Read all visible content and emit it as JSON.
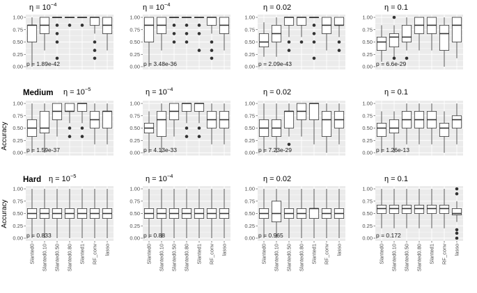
{
  "y_axis_label": "Accuracy",
  "row_labels": [
    "",
    "Medium",
    "Hard"
  ],
  "eta_prefix": "η = ",
  "chart_data": {
    "type": "boxplot",
    "categories": [
      "Slanted0",
      "Slanted0.10",
      "Slanted0.50",
      "Slanted0.80",
      "Slanted1",
      "RF_conv",
      "lasso"
    ],
    "yticks": [
      "0.00",
      "0.25",
      "0.50",
      "0.75",
      "1.00"
    ],
    "ylim": [
      0,
      1
    ],
    "panels": [
      {
        "row": 0,
        "col": 0,
        "eta_base": "10",
        "eta_exp": "−4",
        "pvalue": "p = 1.89e-42",
        "boxes": [
          {
            "q1": 0.5,
            "med": 0.84,
            "q3": 0.84,
            "lo": 0.0,
            "hi": 1.0,
            "out": []
          },
          {
            "q1": 0.67,
            "med": 0.84,
            "q3": 1.0,
            "lo": 0.33,
            "hi": 1.0,
            "out": []
          },
          {
            "q1": 1.0,
            "med": 1.0,
            "q3": 1.0,
            "lo": 1.0,
            "hi": 1.0,
            "out": [
              0.84,
              0.67,
              0.5,
              0.17
            ]
          },
          {
            "q1": 1.0,
            "med": 1.0,
            "q3": 1.0,
            "lo": 1.0,
            "hi": 1.0,
            "out": [
              0.84
            ]
          },
          {
            "q1": 1.0,
            "med": 1.0,
            "q3": 1.0,
            "lo": 1.0,
            "hi": 1.0,
            "out": [
              0.84
            ]
          },
          {
            "q1": 0.84,
            "med": 1.0,
            "q3": 1.0,
            "lo": 0.67,
            "hi": 1.0,
            "out": [
              0.5,
              0.33,
              0.17
            ]
          },
          {
            "q1": 0.67,
            "med": 0.84,
            "q3": 1.0,
            "lo": 0.33,
            "hi": 1.0,
            "out": []
          }
        ]
      },
      {
        "row": 0,
        "col": 1,
        "eta_base": "10",
        "eta_exp": "−4",
        "pvalue": "p = 3.48e-36",
        "boxes": [
          {
            "q1": 0.5,
            "med": 0.84,
            "q3": 1.0,
            "lo": 0.0,
            "hi": 1.0,
            "out": []
          },
          {
            "q1": 0.67,
            "med": 0.84,
            "q3": 1.0,
            "lo": 0.33,
            "hi": 1.0,
            "out": []
          },
          {
            "q1": 1.0,
            "med": 1.0,
            "q3": 1.0,
            "lo": 1.0,
            "hi": 1.0,
            "out": [
              0.84,
              0.67,
              0.5
            ]
          },
          {
            "q1": 1.0,
            "med": 1.0,
            "q3": 1.0,
            "lo": 1.0,
            "hi": 1.0,
            "out": [
              0.84,
              0.67,
              0.5
            ]
          },
          {
            "q1": 1.0,
            "med": 1.0,
            "q3": 1.0,
            "lo": 1.0,
            "hi": 1.0,
            "out": [
              0.84,
              0.67,
              0.33
            ]
          },
          {
            "q1": 0.84,
            "med": 1.0,
            "q3": 1.0,
            "lo": 0.67,
            "hi": 1.0,
            "out": [
              0.5,
              0.33,
              0.17
            ]
          },
          {
            "q1": 0.67,
            "med": 0.84,
            "q3": 1.0,
            "lo": 0.33,
            "hi": 1.0,
            "out": []
          }
        ]
      },
      {
        "row": 0,
        "col": 2,
        "eta_base": "0.02",
        "eta_exp": "",
        "pvalue": "p = 2.09e-43",
        "boxes": [
          {
            "q1": 0.4,
            "med": 0.5,
            "q3": 0.67,
            "lo": 0.2,
            "hi": 0.9,
            "out": []
          },
          {
            "q1": 0.5,
            "med": 0.67,
            "q3": 0.84,
            "lo": 0.2,
            "hi": 1.0,
            "out": []
          },
          {
            "q1": 0.84,
            "med": 1.0,
            "q3": 1.0,
            "lo": 0.6,
            "hi": 1.0,
            "out": [
              0.5,
              0.33
            ]
          },
          {
            "q1": 0.84,
            "med": 1.0,
            "q3": 1.0,
            "lo": 0.6,
            "hi": 1.0,
            "out": [
              0.5
            ]
          },
          {
            "q1": 1.0,
            "med": 1.0,
            "q3": 1.0,
            "lo": 1.0,
            "hi": 1.0,
            "out": [
              0.84,
              0.67,
              0.5,
              0.17
            ]
          },
          {
            "q1": 0.67,
            "med": 0.84,
            "q3": 1.0,
            "lo": 0.33,
            "hi": 1.0,
            "out": []
          },
          {
            "q1": 0.84,
            "med": 0.84,
            "q3": 1.0,
            "lo": 0.6,
            "hi": 1.0,
            "out": [
              0.5,
              0.33
            ]
          }
        ]
      },
      {
        "row": 0,
        "col": 3,
        "eta_base": "0.1",
        "eta_exp": "",
        "pvalue": "p = 6.6e-29",
        "boxes": [
          {
            "q1": 0.33,
            "med": 0.5,
            "q3": 0.6,
            "lo": 0.1,
            "hi": 0.84,
            "out": []
          },
          {
            "q1": 0.4,
            "med": 0.6,
            "q3": 0.67,
            "lo": 0.17,
            "hi": 0.84,
            "out": [
              1.0,
              0.17
            ]
          },
          {
            "q1": 0.5,
            "med": 0.6,
            "q3": 0.84,
            "lo": 0.33,
            "hi": 1.0,
            "out": [
              0.17
            ]
          },
          {
            "q1": 0.67,
            "med": 0.84,
            "q3": 1.0,
            "lo": 0.33,
            "hi": 1.0,
            "out": []
          },
          {
            "q1": 0.67,
            "med": 0.84,
            "q3": 1.0,
            "lo": 0.33,
            "hi": 1.0,
            "out": []
          },
          {
            "q1": 0.33,
            "med": 0.67,
            "q3": 0.84,
            "lo": 0.0,
            "hi": 1.0,
            "out": []
          },
          {
            "q1": 0.5,
            "med": 0.84,
            "q3": 1.0,
            "lo": 0.17,
            "hi": 1.0,
            "out": []
          }
        ]
      },
      {
        "row": 1,
        "col": 0,
        "eta_base": "10",
        "eta_exp": "−5",
        "pvalue": "p = 1.59e-37",
        "boxes": [
          {
            "q1": 0.33,
            "med": 0.5,
            "q3": 0.67,
            "lo": 0.0,
            "hi": 1.0,
            "out": []
          },
          {
            "q1": 0.4,
            "med": 0.5,
            "q3": 0.84,
            "lo": 0.0,
            "hi": 1.0,
            "out": []
          },
          {
            "q1": 0.67,
            "med": 0.84,
            "q3": 1.0,
            "lo": 0.33,
            "hi": 1.0,
            "out": []
          },
          {
            "q1": 0.84,
            "med": 0.84,
            "q3": 1.0,
            "lo": 0.6,
            "hi": 1.0,
            "out": [
              0.5,
              0.33
            ]
          },
          {
            "q1": 0.84,
            "med": 1.0,
            "q3": 1.0,
            "lo": 0.6,
            "hi": 1.0,
            "out": [
              0.5,
              0.33
            ]
          },
          {
            "q1": 0.5,
            "med": 0.67,
            "q3": 0.84,
            "lo": 0.17,
            "hi": 1.0,
            "out": []
          },
          {
            "q1": 0.5,
            "med": 0.84,
            "q3": 0.84,
            "lo": 0.17,
            "hi": 1.0,
            "out": []
          }
        ]
      },
      {
        "row": 1,
        "col": 1,
        "eta_base": "10",
        "eta_exp": "−4",
        "pvalue": "p = 4.13e-33",
        "boxes": [
          {
            "q1": 0.4,
            "med": 0.5,
            "q3": 0.6,
            "lo": 0.0,
            "hi": 0.84,
            "out": []
          },
          {
            "q1": 0.33,
            "med": 0.67,
            "q3": 0.84,
            "lo": 0.0,
            "hi": 1.0,
            "out": []
          },
          {
            "q1": 0.67,
            "med": 0.84,
            "q3": 1.0,
            "lo": 0.33,
            "hi": 1.0,
            "out": []
          },
          {
            "q1": 0.84,
            "med": 1.0,
            "q3": 1.0,
            "lo": 0.6,
            "hi": 1.0,
            "out": [
              0.5,
              0.33
            ]
          },
          {
            "q1": 0.84,
            "med": 1.0,
            "q3": 1.0,
            "lo": 0.6,
            "hi": 1.0,
            "out": [
              0.5,
              0.33
            ]
          },
          {
            "q1": 0.5,
            "med": 0.67,
            "q3": 0.84,
            "lo": 0.17,
            "hi": 1.0,
            "out": []
          },
          {
            "q1": 0.5,
            "med": 0.67,
            "q3": 0.84,
            "lo": 0.17,
            "hi": 1.0,
            "out": []
          }
        ]
      },
      {
        "row": 1,
        "col": 2,
        "eta_base": "0.02",
        "eta_exp": "",
        "pvalue": "p = 7.23e-29",
        "boxes": [
          {
            "q1": 0.33,
            "med": 0.5,
            "q3": 0.67,
            "lo": 0.0,
            "hi": 1.0,
            "out": []
          },
          {
            "q1": 0.33,
            "med": 0.5,
            "q3": 0.67,
            "lo": 0.0,
            "hi": 1.0,
            "out": []
          },
          {
            "q1": 0.5,
            "med": 0.84,
            "q3": 0.84,
            "lo": 0.33,
            "hi": 1.0,
            "out": [
              0.17
            ]
          },
          {
            "q1": 0.67,
            "med": 0.84,
            "q3": 1.0,
            "lo": 0.33,
            "hi": 1.0,
            "out": []
          },
          {
            "q1": 0.67,
            "med": 1.0,
            "q3": 1.0,
            "lo": 0.17,
            "hi": 1.0,
            "out": []
          },
          {
            "q1": 0.33,
            "med": 0.67,
            "q3": 0.84,
            "lo": 0.0,
            "hi": 1.0,
            "out": []
          },
          {
            "q1": 0.5,
            "med": 0.67,
            "q3": 0.84,
            "lo": 0.17,
            "hi": 1.0,
            "out": []
          }
        ]
      },
      {
        "row": 1,
        "col": 3,
        "eta_base": "0.1",
        "eta_exp": "",
        "pvalue": "p = 1.26e-13",
        "boxes": [
          {
            "q1": 0.33,
            "med": 0.5,
            "q3": 0.6,
            "lo": 0.0,
            "hi": 0.84,
            "out": []
          },
          {
            "q1": 0.4,
            "med": 0.5,
            "q3": 0.67,
            "lo": 0.0,
            "hi": 0.84,
            "out": []
          },
          {
            "q1": 0.5,
            "med": 0.67,
            "q3": 0.84,
            "lo": 0.17,
            "hi": 1.0,
            "out": []
          },
          {
            "q1": 0.5,
            "med": 0.67,
            "q3": 0.84,
            "lo": 0.17,
            "hi": 1.0,
            "out": []
          },
          {
            "q1": 0.5,
            "med": 0.67,
            "q3": 0.84,
            "lo": 0.17,
            "hi": 1.0,
            "out": []
          },
          {
            "q1": 0.33,
            "med": 0.5,
            "q3": 0.6,
            "lo": 0.0,
            "hi": 0.84,
            "out": []
          },
          {
            "q1": 0.5,
            "med": 0.67,
            "q3": 0.75,
            "lo": 0.17,
            "hi": 1.0,
            "out": []
          }
        ]
      },
      {
        "row": 2,
        "col": 0,
        "eta_base": "10",
        "eta_exp": "−5",
        "pvalue": "p = 0.833",
        "boxes": [
          {
            "q1": 0.4,
            "med": 0.5,
            "q3": 0.6,
            "lo": 0.0,
            "hi": 1.0,
            "out": []
          },
          {
            "q1": 0.4,
            "med": 0.5,
            "q3": 0.6,
            "lo": 0.0,
            "hi": 1.0,
            "out": []
          },
          {
            "q1": 0.4,
            "med": 0.5,
            "q3": 0.6,
            "lo": 0.0,
            "hi": 1.0,
            "out": []
          },
          {
            "q1": 0.4,
            "med": 0.5,
            "q3": 0.6,
            "lo": 0.0,
            "hi": 1.0,
            "out": []
          },
          {
            "q1": 0.4,
            "med": 0.5,
            "q3": 0.6,
            "lo": 0.0,
            "hi": 1.0,
            "out": []
          },
          {
            "q1": 0.4,
            "med": 0.5,
            "q3": 0.6,
            "lo": 0.0,
            "hi": 1.0,
            "out": []
          },
          {
            "q1": 0.4,
            "med": 0.5,
            "q3": 0.6,
            "lo": 0.0,
            "hi": 1.0,
            "out": []
          }
        ]
      },
      {
        "row": 2,
        "col": 1,
        "eta_base": "10",
        "eta_exp": "−4",
        "pvalue": "p = 0.88",
        "boxes": [
          {
            "q1": 0.4,
            "med": 0.5,
            "q3": 0.6,
            "lo": 0.0,
            "hi": 1.0,
            "out": []
          },
          {
            "q1": 0.4,
            "med": 0.5,
            "q3": 0.6,
            "lo": 0.0,
            "hi": 1.0,
            "out": []
          },
          {
            "q1": 0.4,
            "med": 0.5,
            "q3": 0.6,
            "lo": 0.0,
            "hi": 1.0,
            "out": []
          },
          {
            "q1": 0.4,
            "med": 0.5,
            "q3": 0.6,
            "lo": 0.0,
            "hi": 1.0,
            "out": []
          },
          {
            "q1": 0.4,
            "med": 0.5,
            "q3": 0.6,
            "lo": 0.0,
            "hi": 1.0,
            "out": []
          },
          {
            "q1": 0.4,
            "med": 0.5,
            "q3": 0.6,
            "lo": 0.0,
            "hi": 1.0,
            "out": []
          },
          {
            "q1": 0.4,
            "med": 0.5,
            "q3": 0.6,
            "lo": 0.0,
            "hi": 1.0,
            "out": []
          }
        ]
      },
      {
        "row": 2,
        "col": 2,
        "eta_base": "0.02",
        "eta_exp": "",
        "pvalue": "p = 0.965",
        "boxes": [
          {
            "q1": 0.4,
            "med": 0.5,
            "q3": 0.6,
            "lo": 0.0,
            "hi": 1.0,
            "out": []
          },
          {
            "q1": 0.33,
            "med": 0.5,
            "q3": 0.75,
            "lo": 0.0,
            "hi": 1.0,
            "out": []
          },
          {
            "q1": 0.4,
            "med": 0.5,
            "q3": 0.6,
            "lo": 0.0,
            "hi": 1.0,
            "out": []
          },
          {
            "q1": 0.4,
            "med": 0.5,
            "q3": 0.6,
            "lo": 0.0,
            "hi": 1.0,
            "out": []
          },
          {
            "q1": 0.4,
            "med": 0.6,
            "q3": 0.6,
            "lo": 0.0,
            "hi": 1.0,
            "out": []
          },
          {
            "q1": 0.4,
            "med": 0.5,
            "q3": 0.6,
            "lo": 0.0,
            "hi": 1.0,
            "out": []
          },
          {
            "q1": 0.4,
            "med": 0.5,
            "q3": 0.6,
            "lo": 0.0,
            "hi": 1.0,
            "out": []
          }
        ]
      },
      {
        "row": 2,
        "col": 3,
        "eta_base": "0.1",
        "eta_exp": "",
        "pvalue": "p = 0.172",
        "boxes": [
          {
            "q1": 0.5,
            "med": 0.6,
            "q3": 0.67,
            "lo": 0.2,
            "hi": 1.0,
            "out": []
          },
          {
            "q1": 0.5,
            "med": 0.6,
            "q3": 0.67,
            "lo": 0.2,
            "hi": 1.0,
            "out": []
          },
          {
            "q1": 0.5,
            "med": 0.6,
            "q3": 0.67,
            "lo": 0.2,
            "hi": 1.0,
            "out": []
          },
          {
            "q1": 0.5,
            "med": 0.6,
            "q3": 0.67,
            "lo": 0.2,
            "hi": 1.0,
            "out": []
          },
          {
            "q1": 0.5,
            "med": 0.6,
            "q3": 0.67,
            "lo": 0.2,
            "hi": 1.0,
            "out": []
          },
          {
            "q1": 0.5,
            "med": 0.6,
            "q3": 0.67,
            "lo": 0.2,
            "hi": 1.0,
            "out": []
          },
          {
            "q1": 0.47,
            "med": 0.5,
            "q3": 0.6,
            "lo": 0.33,
            "hi": 0.75,
            "out": [
              1.0,
              0.9,
              0.17,
              0.1,
              0.0
            ]
          }
        ]
      }
    ]
  }
}
